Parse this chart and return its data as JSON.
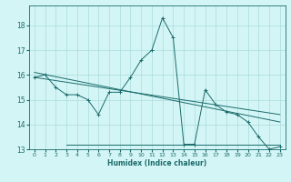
{
  "xlabel": "Humidex (Indice chaleur)",
  "background_color": "#d4f5f5",
  "line_color": "#1a6b6b",
  "grid_color": "#aadcdc",
  "xlim": [
    -0.5,
    23.5
  ],
  "ylim": [
    13.0,
    18.8
  ],
  "yticks": [
    13,
    14,
    15,
    16,
    17,
    18
  ],
  "xticks": [
    0,
    1,
    2,
    3,
    4,
    5,
    6,
    7,
    8,
    9,
    10,
    11,
    12,
    13,
    14,
    15,
    16,
    17,
    18,
    19,
    20,
    21,
    22,
    23
  ],
  "series": [
    {
      "x": [
        0,
        1,
        2,
        3,
        4,
        5,
        6,
        7,
        8,
        9,
        10,
        11,
        12,
        13,
        14,
        15,
        16,
        17,
        18,
        19,
        20,
        21,
        22,
        23
      ],
      "y": [
        15.9,
        16.0,
        15.5,
        15.2,
        15.2,
        15.0,
        14.4,
        15.3,
        15.3,
        15.9,
        16.6,
        17.0,
        18.3,
        17.5,
        13.2,
        13.2,
        15.4,
        14.8,
        14.5,
        14.4,
        14.1,
        13.5,
        13.0,
        13.1
      ],
      "marker": true
    },
    {
      "x": [
        0,
        23
      ],
      "y": [
        15.9,
        14.4
      ],
      "marker": false
    },
    {
      "x": [
        3,
        23
      ],
      "y": [
        13.2,
        13.2
      ],
      "marker": false
    },
    {
      "x": [
        0,
        23
      ],
      "y": [
        16.1,
        14.1
      ],
      "marker": false
    }
  ]
}
